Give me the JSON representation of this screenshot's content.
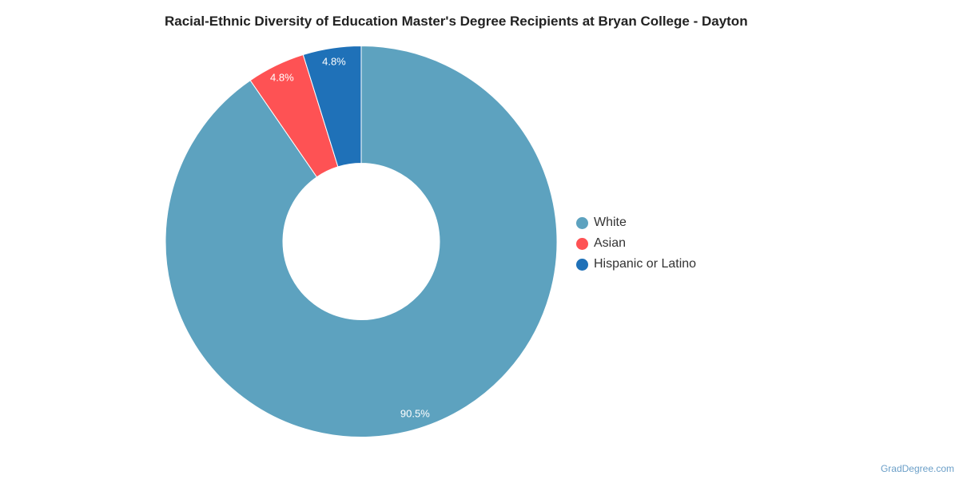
{
  "chart_data": {
    "type": "pie",
    "title": "Racial-Ethnic Diversity of Education Master's Degree Recipients at Bryan College - Dayton",
    "donut": true,
    "slices": [
      {
        "label": "White",
        "value": 90.5,
        "display": "90.5%",
        "color": "#5da2bf"
      },
      {
        "label": "Asian",
        "value": 4.8,
        "display": "4.8%",
        "color": "#fe5254"
      },
      {
        "label": "Hispanic or Latino",
        "value": 4.8,
        "display": "4.8%",
        "color": "#1f71b8"
      }
    ],
    "legend_placement": "right"
  },
  "credit": "GradDegree.com"
}
